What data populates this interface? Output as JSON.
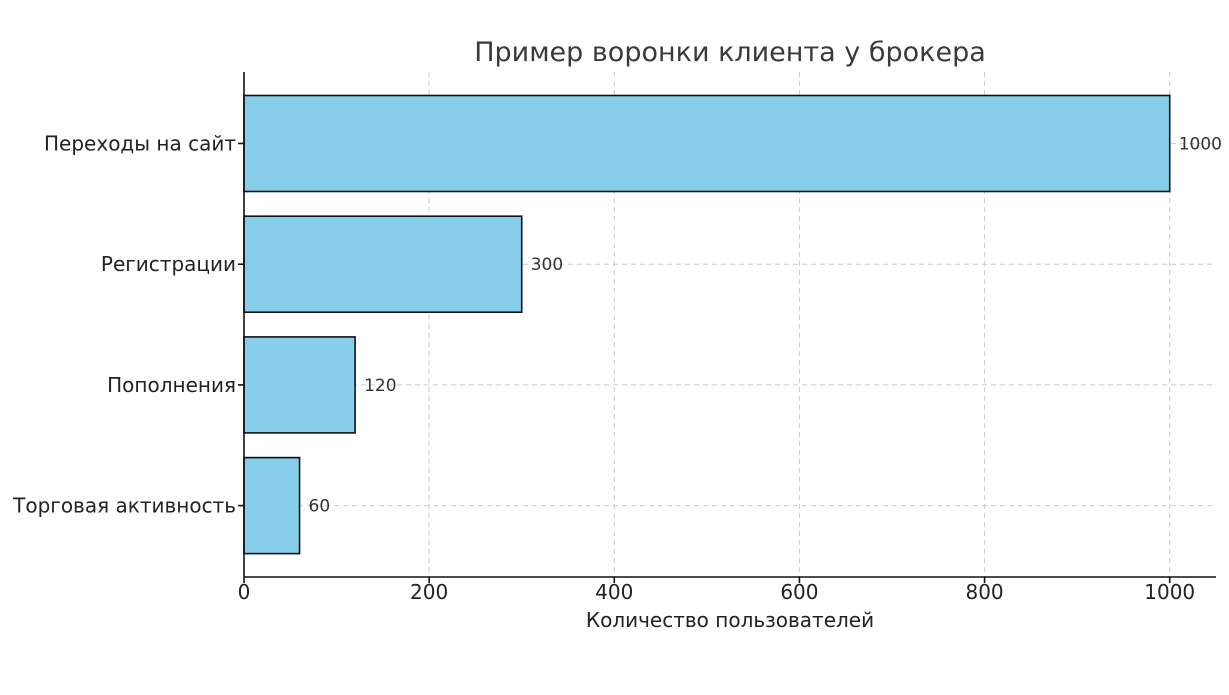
{
  "chart_data": {
    "type": "bar",
    "orientation": "horizontal",
    "title": "Пример воронки клиента у брокера",
    "xlabel": "Количество пользователей",
    "ylabel": "",
    "categories": [
      "Переходы на сайт",
      "Регистрации",
      "Пополнения",
      "Торговая активность"
    ],
    "values": [
      1000,
      300,
      120,
      60
    ],
    "data_labels": [
      "1000",
      "300",
      "120",
      "60"
    ],
    "xlim": [
      0,
      1050
    ],
    "x_ticks": [
      0,
      200,
      400,
      600,
      800,
      1000
    ],
    "x_tick_labels": [
      "0",
      "200",
      "400",
      "600",
      "800",
      "1000"
    ],
    "grid": true,
    "bar_color": "#87CEEB",
    "edge_color": "#111111"
  }
}
